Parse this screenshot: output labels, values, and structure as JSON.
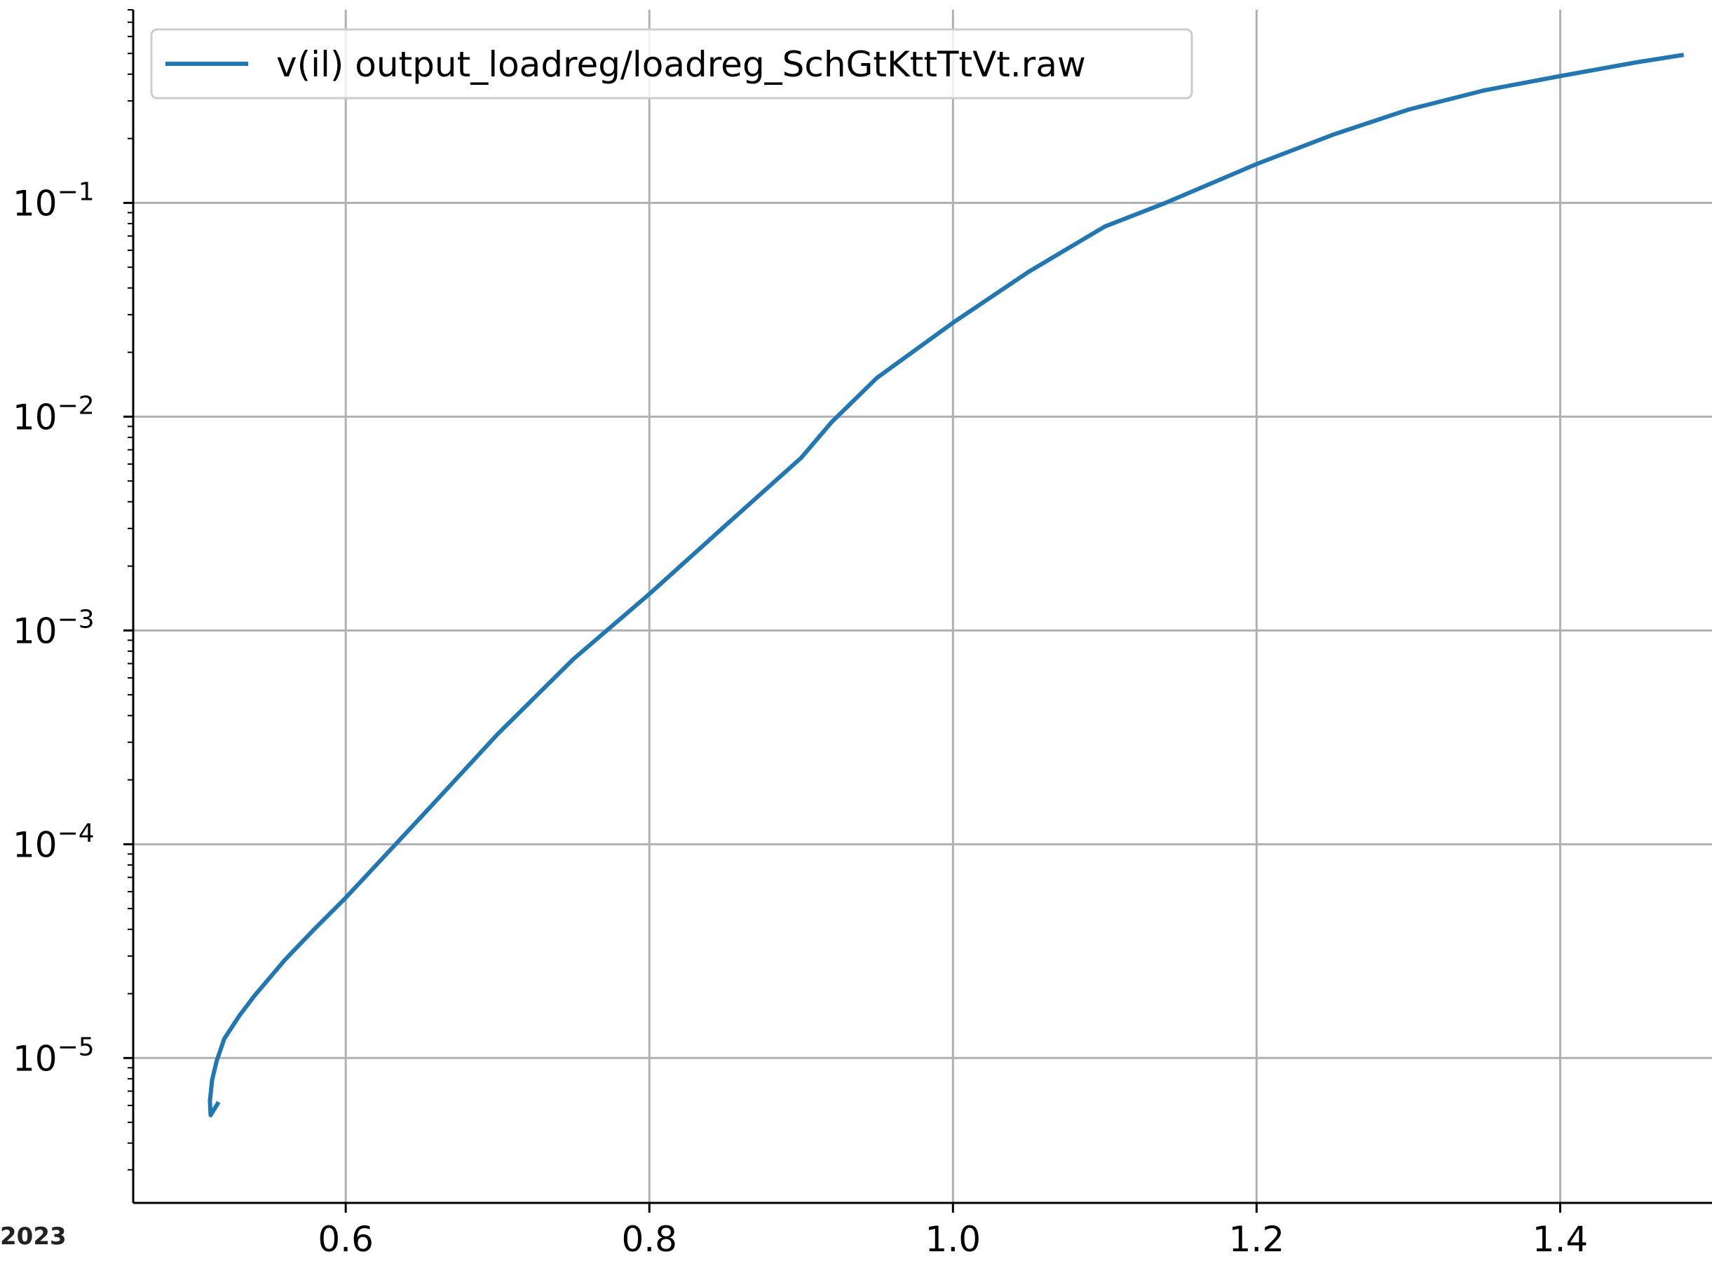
{
  "corner_label": "2023",
  "chart_data": {
    "type": "line",
    "title": "",
    "xlabel": "",
    "ylabel": "",
    "xlim": [
      0.46,
      1.5
    ],
    "ylim": [
      2.1e-06,
      0.8
    ],
    "yscale": "log",
    "grid": true,
    "legend_position": "upper left",
    "x_ticks": [
      {
        "value": 0.6,
        "label": "0.6"
      },
      {
        "value": 0.8,
        "label": "0.8"
      },
      {
        "value": 1.0,
        "label": "1.0"
      },
      {
        "value": 1.2,
        "label": "1.2"
      },
      {
        "value": 1.4,
        "label": "1.4"
      }
    ],
    "y_ticks": [
      {
        "value": 1e-05,
        "base": "10",
        "exp": "−5"
      },
      {
        "value": 0.0001,
        "base": "10",
        "exp": "−4"
      },
      {
        "value": 0.001,
        "base": "10",
        "exp": "−3"
      },
      {
        "value": 0.01,
        "base": "10",
        "exp": "−2"
      },
      {
        "value": 0.1,
        "base": "10",
        "exp": "−1"
      }
    ],
    "series": [
      {
        "name": "v(il) output_loadreg/loadreg_SchGtKttTtVt.raw",
        "color": "#1f77b4",
        "x": [
          0.5155,
          0.511,
          0.5105,
          0.512,
          0.515,
          0.52,
          0.53,
          0.54,
          0.56,
          0.58,
          0.6,
          0.63,
          0.65,
          0.7,
          0.75,
          0.8,
          0.85,
          0.9,
          0.92,
          0.95,
          1.0,
          1.05,
          1.1,
          1.14,
          1.2,
          1.25,
          1.3,
          1.35,
          1.4,
          1.45,
          1.48
        ],
        "y": [
          6.1e-06,
          5.4e-06,
          6.3e-06,
          7.9e-06,
          9.7e-06,
          1.23e-05,
          1.58e-05,
          1.96e-05,
          2.88e-05,
          4.05e-05,
          5.62e-05,
          9.51e-05,
          0.000135,
          0.000327,
          0.000735,
          0.00148,
          0.00309,
          0.00642,
          0.00942,
          0.0152,
          0.0275,
          0.0477,
          0.0775,
          0.1,
          0.152,
          0.208,
          0.273,
          0.336,
          0.392,
          0.454,
          0.491
        ]
      }
    ]
  }
}
